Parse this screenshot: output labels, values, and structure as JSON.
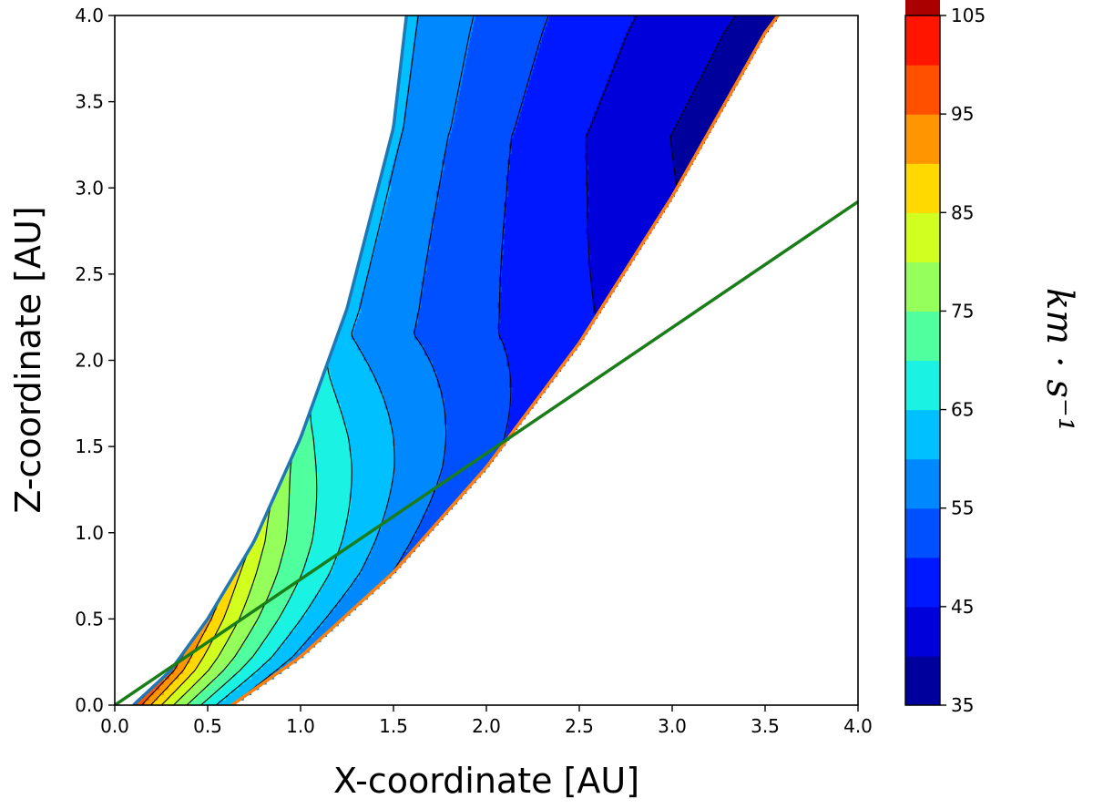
{
  "chart_data": {
    "type": "contour",
    "title": "",
    "xlabel": "X-coordinate [AU]",
    "ylabel": "Z-coordinate [AU]",
    "xlim": [
      0.0,
      4.0
    ],
    "ylim": [
      0.0,
      4.0
    ],
    "x_ticks": [
      "0.0",
      "0.5",
      "1.0",
      "1.5",
      "2.0",
      "2.5",
      "3.0",
      "3.5",
      "4.0"
    ],
    "y_ticks": [
      "0.0",
      "0.5",
      "1.0",
      "1.5",
      "2.0",
      "2.5",
      "3.0",
      "3.5",
      "4.0"
    ],
    "grid": false,
    "colorbar": {
      "label": "km · s⁻¹",
      "min": 35,
      "max": 105,
      "step": 5,
      "tick_labels": [
        "35",
        "45",
        "55",
        "65",
        "75",
        "85",
        "95",
        "105"
      ],
      "colors": [
        "#00009c",
        "#0000db",
        "#0018ff",
        "#0050ff",
        "#0088ff",
        "#00c0ff",
        "#1af2e3",
        "#50ff9e",
        "#95ff5b",
        "#d1ff1f",
        "#ffd900",
        "#ff9500",
        "#ff5000",
        "#ff1500",
        "#aa0000"
      ]
    },
    "region": {
      "inner_boundary": {
        "color": "#1f77b4",
        "points": [
          [
            0.1,
            0.0
          ],
          [
            0.3,
            0.2
          ],
          [
            0.5,
            0.5
          ],
          [
            0.75,
            0.95
          ],
          [
            1.0,
            1.55
          ],
          [
            1.25,
            2.3
          ],
          [
            1.5,
            3.35
          ],
          [
            1.57,
            4.0
          ]
        ]
      },
      "outer_boundary": {
        "color": "#ff7f0e",
        "points": [
          [
            0.63,
            0.0
          ],
          [
            1.0,
            0.28
          ],
          [
            1.5,
            0.77
          ],
          [
            2.0,
            1.38
          ],
          [
            2.5,
            2.1
          ],
          [
            3.0,
            2.95
          ],
          [
            3.5,
            3.9
          ],
          [
            3.57,
            4.0
          ]
        ]
      },
      "velocity_range": [
        38,
        102
      ]
    },
    "line": {
      "color": "#1a7d1a",
      "points": [
        [
          0.0,
          0.0
        ],
        [
          4.0,
          2.92
        ]
      ]
    }
  }
}
